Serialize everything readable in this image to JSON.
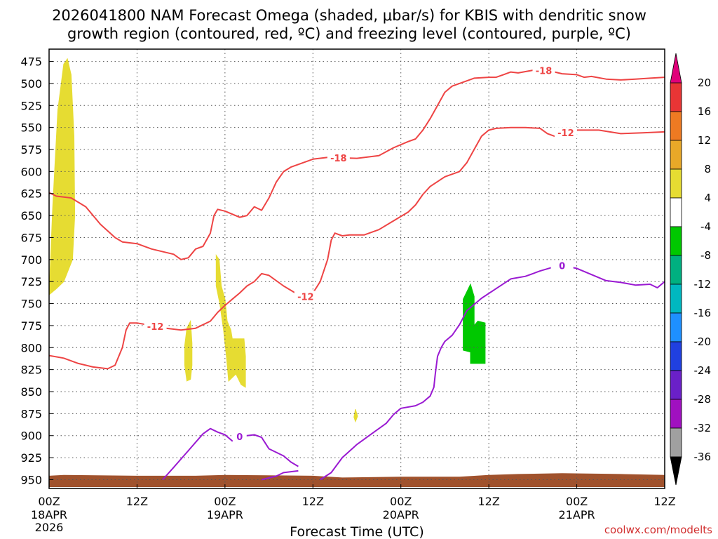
{
  "title_line1": "2026041800 NAM Forecast Omega (shaded, μbar/s) for KBIS with dendritic snow",
  "title_line2": "growth region (contoured, red, ºC) and freezing level (contoured, purple, ºC)",
  "credit": "coolwx.com/modelts",
  "chart_data": {
    "type": "area",
    "title": "2026041800 NAM Forecast Omega (shaded, μbar/s) for KBIS with dendritic snow growth region (contoured, red, ºC) and freezing level (contoured, purple, ºC)",
    "xlabel": "Forecast Time (UTC)",
    "ylabel": "",
    "xlim": [
      0,
      84
    ],
    "ylim": [
      960,
      461
    ],
    "y_scale": "pressure (hPa), increasing downward",
    "grid": true,
    "x_ticks": [
      {
        "hour": 0,
        "label": "00Z",
        "date": "18APR",
        "year": "2026"
      },
      {
        "hour": 12,
        "label": "12Z",
        "date": "",
        "year": ""
      },
      {
        "hour": 24,
        "label": "00Z",
        "date": "19APR",
        "year": ""
      },
      {
        "hour": 36,
        "label": "12Z",
        "date": "",
        "year": ""
      },
      {
        "hour": 48,
        "label": "00Z",
        "date": "20APR",
        "year": ""
      },
      {
        "hour": 60,
        "label": "12Z",
        "date": "",
        "year": ""
      },
      {
        "hour": 72,
        "label": "00Z",
        "date": "21APR",
        "year": ""
      },
      {
        "hour": 84,
        "label": "12Z",
        "date": "",
        "year": ""
      }
    ],
    "y_ticks": [
      475,
      500,
      525,
      550,
      575,
      600,
      625,
      650,
      675,
      700,
      725,
      750,
      775,
      800,
      825,
      850,
      875,
      900,
      925,
      950
    ],
    "colorbar": {
      "labels": [
        "20",
        "16",
        "12",
        "8",
        "4",
        "-4",
        "-8",
        "-12",
        "-16",
        "-20",
        "-24",
        "-28",
        "-32",
        "-36"
      ],
      "bins": [
        {
          "range": [
            16,
            20
          ],
          "color": "#e83535"
        },
        {
          "range": [
            12,
            16
          ],
          "color": "#ee7a22"
        },
        {
          "range": [
            8,
            12
          ],
          "color": "#e8a828"
        },
        {
          "range": [
            4,
            8
          ],
          "color": "#e6dc32"
        },
        {
          "range": [
            -4,
            4
          ],
          "color": "#ffffff"
        },
        {
          "range": [
            -8,
            -4
          ],
          "color": "#00c800"
        },
        {
          "range": [
            -12,
            -8
          ],
          "color": "#00b080"
        },
        {
          "range": [
            -16,
            -12
          ],
          "color": "#00b8c0"
        },
        {
          "range": [
            -20,
            -16
          ],
          "color": "#1e90ff"
        },
        {
          "range": [
            -24,
            -20
          ],
          "color": "#2040e0"
        },
        {
          "range": [
            -28,
            -24
          ],
          "color": "#6a20c8"
        },
        {
          "range": [
            -32,
            -28
          ],
          "color": "#a010c0"
        },
        {
          "range": [
            -36,
            -32
          ],
          "color": "#a0a0a0"
        }
      ],
      "over_color": "#e0007a",
      "under_color": "#000000"
    },
    "shaded_regions": [
      {
        "name": "omega-plus-4-early",
        "color": "#e6dc32",
        "points": [
          [
            0,
            740
          ],
          [
            0.5,
            640
          ],
          [
            1.2,
            530
          ],
          [
            2,
            478
          ],
          [
            2.5,
            472
          ],
          [
            3,
            490
          ],
          [
            3.4,
            560
          ],
          [
            3.5,
            650
          ],
          [
            3.2,
            700
          ],
          [
            2,
            725
          ],
          [
            1,
            733
          ]
        ]
      },
      {
        "name": "omega-plus-4-a",
        "color": "#e6dc32",
        "points": [
          [
            18.5,
            798
          ],
          [
            18.8,
            778
          ],
          [
            19.3,
            770
          ],
          [
            19.5,
            795
          ],
          [
            19.5,
            820
          ],
          [
            19.3,
            836
          ],
          [
            18.8,
            838
          ],
          [
            18.5,
            820
          ]
        ]
      },
      {
        "name": "omega-plus-4-b",
        "color": "#e6dc32",
        "points": [
          [
            22.8,
            695
          ],
          [
            23.2,
            700
          ],
          [
            23.5,
            730
          ],
          [
            24,
            745
          ],
          [
            24.3,
            770
          ],
          [
            24.8,
            780
          ],
          [
            25,
            790
          ],
          [
            26.6,
            790
          ],
          [
            26.8,
            810
          ],
          [
            26.8,
            845
          ],
          [
            26.2,
            842
          ],
          [
            25.5,
            830
          ],
          [
            24.5,
            838
          ],
          [
            24.2,
            810
          ],
          [
            23.8,
            780
          ],
          [
            23.3,
            750
          ],
          [
            22.8,
            730
          ]
        ]
      },
      {
        "name": "omega-plus-4-small",
        "color": "#e6dc32",
        "points": [
          [
            41.6,
            879
          ],
          [
            41.8,
            870
          ],
          [
            42.1,
            878
          ],
          [
            41.8,
            884
          ]
        ]
      },
      {
        "name": "omega-minus-4",
        "color": "#00c800",
        "points": [
          [
            56.5,
            745
          ],
          [
            57.5,
            728
          ],
          [
            58,
            742
          ],
          [
            58,
            775
          ],
          [
            58.5,
            770
          ],
          [
            59.5,
            772
          ],
          [
            59.5,
            818
          ],
          [
            57.5,
            818
          ],
          [
            57.5,
            805
          ],
          [
            56.5,
            803
          ]
        ]
      }
    ],
    "terrain": {
      "color": "#a0522d",
      "top_pressure": [
        [
          0,
          946
        ],
        [
          2,
          945
        ],
        [
          12,
          946
        ],
        [
          20,
          946
        ],
        [
          24,
          945
        ],
        [
          36,
          946
        ],
        [
          40,
          948
        ],
        [
          48,
          947
        ],
        [
          56,
          947
        ],
        [
          60,
          945
        ],
        [
          64,
          944
        ],
        [
          70,
          943
        ],
        [
          78,
          944
        ],
        [
          84,
          945
        ]
      ],
      "bottom_pressure": 958
    },
    "series": [
      {
        "name": "-18",
        "kind": "dendritic-snow-growth",
        "color": "#ee4444",
        "label_at_hour": 39.5,
        "points": [
          [
            0,
            624
          ],
          [
            1,
            628
          ],
          [
            3,
            630
          ],
          [
            5,
            640
          ],
          [
            7,
            660
          ],
          [
            9,
            675
          ],
          [
            10,
            680
          ],
          [
            12,
            682
          ],
          [
            14,
            688
          ],
          [
            17,
            694
          ],
          [
            18,
            700
          ],
          [
            19,
            698
          ],
          [
            20,
            688
          ],
          [
            21,
            685
          ],
          [
            22,
            670
          ],
          [
            22.5,
            650
          ],
          [
            23,
            643
          ],
          [
            24,
            645
          ],
          [
            26,
            652
          ],
          [
            27,
            650
          ],
          [
            28,
            640
          ],
          [
            29,
            644
          ],
          [
            30,
            630
          ],
          [
            31,
            612
          ],
          [
            32,
            600
          ],
          [
            33,
            595
          ],
          [
            34,
            592
          ],
          [
            36,
            586
          ],
          [
            38,
            584
          ],
          [
            42,
            585
          ],
          [
            45,
            582
          ],
          [
            47,
            573
          ],
          [
            49,
            566
          ],
          [
            50,
            563
          ],
          [
            51,
            553
          ],
          [
            52,
            540
          ],
          [
            53,
            525
          ],
          [
            54,
            510
          ],
          [
            55,
            503
          ],
          [
            57,
            497
          ],
          [
            58,
            494
          ],
          [
            60,
            493
          ],
          [
            61,
            493
          ],
          [
            62,
            490
          ],
          [
            63,
            487
          ],
          [
            64,
            488
          ],
          [
            66,
            485
          ],
          [
            67,
            485
          ],
          [
            69,
            487
          ],
          [
            70,
            489
          ],
          [
            72,
            490
          ],
          [
            73,
            493
          ],
          [
            74,
            492
          ],
          [
            76,
            495
          ],
          [
            78,
            496
          ],
          [
            80,
            495
          ],
          [
            82,
            494
          ],
          [
            84,
            493
          ]
        ]
      },
      {
        "name": "-12",
        "kind": "dendritic-snow-growth",
        "color": "#ee4444",
        "label_at_hour": 35,
        "points": [
          [
            0,
            809
          ],
          [
            2,
            812
          ],
          [
            4,
            818
          ],
          [
            6,
            822
          ],
          [
            8,
            824
          ],
          [
            9,
            820
          ],
          [
            10,
            800
          ],
          [
            10.5,
            780
          ],
          [
            11,
            772
          ],
          [
            12,
            772
          ],
          [
            14,
            775
          ],
          [
            16,
            778
          ],
          [
            18,
            780
          ],
          [
            20,
            778
          ],
          [
            22,
            770
          ],
          [
            23,
            760
          ],
          [
            24,
            752
          ],
          [
            25,
            745
          ],
          [
            26,
            738
          ],
          [
            27,
            730
          ],
          [
            28,
            725
          ],
          [
            29,
            716
          ],
          [
            30,
            718
          ],
          [
            32,
            730
          ],
          [
            34,
            740
          ],
          [
            35,
            742
          ],
          [
            36,
            738
          ],
          [
            37,
            725
          ],
          [
            38,
            700
          ],
          [
            38.5,
            678
          ],
          [
            39,
            670
          ],
          [
            40,
            673
          ],
          [
            41,
            672
          ],
          [
            43,
            672
          ],
          [
            45,
            666
          ],
          [
            47,
            656
          ],
          [
            49,
            646
          ],
          [
            50,
            638
          ],
          [
            51,
            626
          ],
          [
            52,
            617
          ],
          [
            54,
            606
          ],
          [
            56,
            600
          ],
          [
            57,
            590
          ],
          [
            58,
            575
          ],
          [
            59,
            560
          ],
          [
            60,
            553
          ],
          [
            61,
            551
          ],
          [
            63,
            550
          ],
          [
            65,
            550
          ],
          [
            67,
            551
          ],
          [
            68,
            557
          ],
          [
            69,
            560
          ],
          [
            70,
            557
          ],
          [
            72,
            553
          ],
          [
            75,
            553
          ],
          [
            78,
            557
          ],
          [
            81,
            556
          ],
          [
            84,
            555
          ]
        ]
      },
      {
        "name": "0",
        "kind": "freezing-level",
        "color": "#9a1ad2",
        "label_at_hour": 70,
        "points": [
          [
            15.5,
            950
          ],
          [
            17,
            936
          ],
          [
            19,
            917
          ],
          [
            21,
            898
          ],
          [
            22,
            892
          ],
          [
            23,
            896
          ],
          [
            24,
            899
          ],
          [
            25,
            906
          ],
          [
            26,
            901
          ],
          [
            28,
            899
          ],
          [
            29,
            902
          ],
          [
            30,
            915
          ],
          [
            32,
            923
          ],
          [
            33,
            930
          ],
          [
            34,
            935
          ]
        ]
      },
      {
        "name": "0",
        "kind": "freezing-level",
        "color": "#9a1ad2",
        "label_at_hour": 70,
        "points": [
          [
            29,
            950
          ],
          [
            31,
            946
          ],
          [
            32,
            942
          ],
          [
            34,
            940
          ]
        ]
      },
      {
        "name": "0",
        "kind": "freezing-level",
        "color": "#9a1ad2",
        "label_at_hour": 70,
        "points": [
          [
            37,
            950
          ],
          [
            38.5,
            942
          ],
          [
            40,
            925
          ],
          [
            42,
            910
          ],
          [
            44,
            898
          ],
          [
            46,
            886
          ],
          [
            47,
            876
          ],
          [
            48,
            869
          ],
          [
            50,
            866
          ],
          [
            51,
            862
          ],
          [
            52,
            855
          ],
          [
            52.5,
            845
          ],
          [
            52.7,
            830
          ],
          [
            53,
            810
          ],
          [
            53.5,
            800
          ],
          [
            54,
            793
          ],
          [
            55,
            786
          ],
          [
            56,
            774
          ],
          [
            57,
            758
          ],
          [
            59,
            744
          ],
          [
            61,
            733
          ],
          [
            63,
            722
          ],
          [
            65,
            719
          ],
          [
            67,
            713
          ],
          [
            69,
            708
          ],
          [
            70,
            707
          ],
          [
            72,
            710
          ],
          [
            74,
            717
          ],
          [
            76,
            724
          ],
          [
            78,
            726
          ],
          [
            80,
            729
          ],
          [
            82,
            728
          ],
          [
            83,
            732
          ],
          [
            84,
            725
          ]
        ]
      }
    ]
  }
}
